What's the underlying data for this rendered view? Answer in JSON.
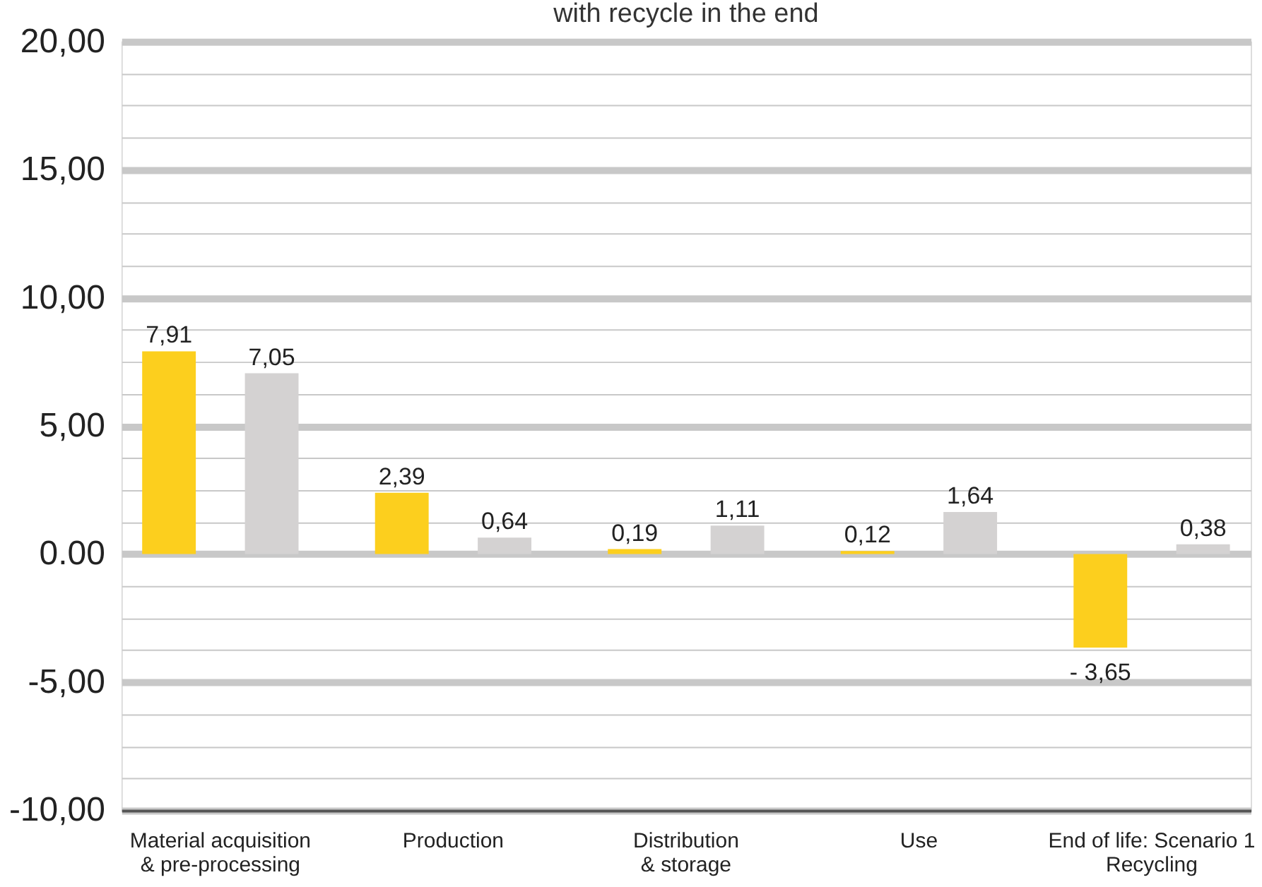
{
  "chart_data": {
    "type": "bar",
    "title": "with recycle in the end",
    "categories": [
      "Material acquisition\n& pre-processing",
      "Production",
      "Distribution\n& storage",
      "Use",
      "End of life: Scenario 1\nRecycling"
    ],
    "series": [
      {
        "color": "#fccf1e",
        "values": [
          7.91,
          2.39,
          0.19,
          0.12,
          -3.65
        ],
        "value_labels": [
          "7,91",
          "2,39",
          "0,19",
          "0,12",
          "- 3,65"
        ]
      },
      {
        "color": "#d4d2d2",
        "values": [
          7.05,
          0.64,
          1.11,
          1.64,
          0.38
        ],
        "value_labels": [
          "7,05",
          "0,64",
          "1,11",
          "1,64",
          "0,38"
        ]
      }
    ],
    "ylim": [
      -10,
      20
    ],
    "yticks": [
      {
        "value": -10,
        "label": "-10,00"
      },
      {
        "value": -8.75,
        "label": null
      },
      {
        "value": -7.5,
        "label": null
      },
      {
        "value": -6.25,
        "label": null
      },
      {
        "value": -5,
        "label": "-5,00"
      },
      {
        "value": -3.75,
        "label": null
      },
      {
        "value": -2.5,
        "label": null
      },
      {
        "value": -1.25,
        "label": null
      },
      {
        "value": 0,
        "label": "0.00"
      },
      {
        "value": 1.25,
        "label": null
      },
      {
        "value": 2.5,
        "label": null
      },
      {
        "value": 3.75,
        "label": null
      },
      {
        "value": 5,
        "label": "5,00"
      },
      {
        "value": 6.25,
        "label": null
      },
      {
        "value": 7.5,
        "label": null
      },
      {
        "value": 8.75,
        "label": null
      },
      {
        "value": 10,
        "label": "10,00"
      },
      {
        "value": 11.25,
        "label": null
      },
      {
        "value": 12.5,
        "label": null
      },
      {
        "value": 13.75,
        "label": null
      },
      {
        "value": 15,
        "label": "15,00"
      },
      {
        "value": 16.25,
        "label": null
      },
      {
        "value": 17.5,
        "label": null
      },
      {
        "value": 18.75,
        "label": null
      },
      {
        "value": 20,
        "label": "20,00"
      }
    ],
    "grid": "y",
    "legend": false
  }
}
